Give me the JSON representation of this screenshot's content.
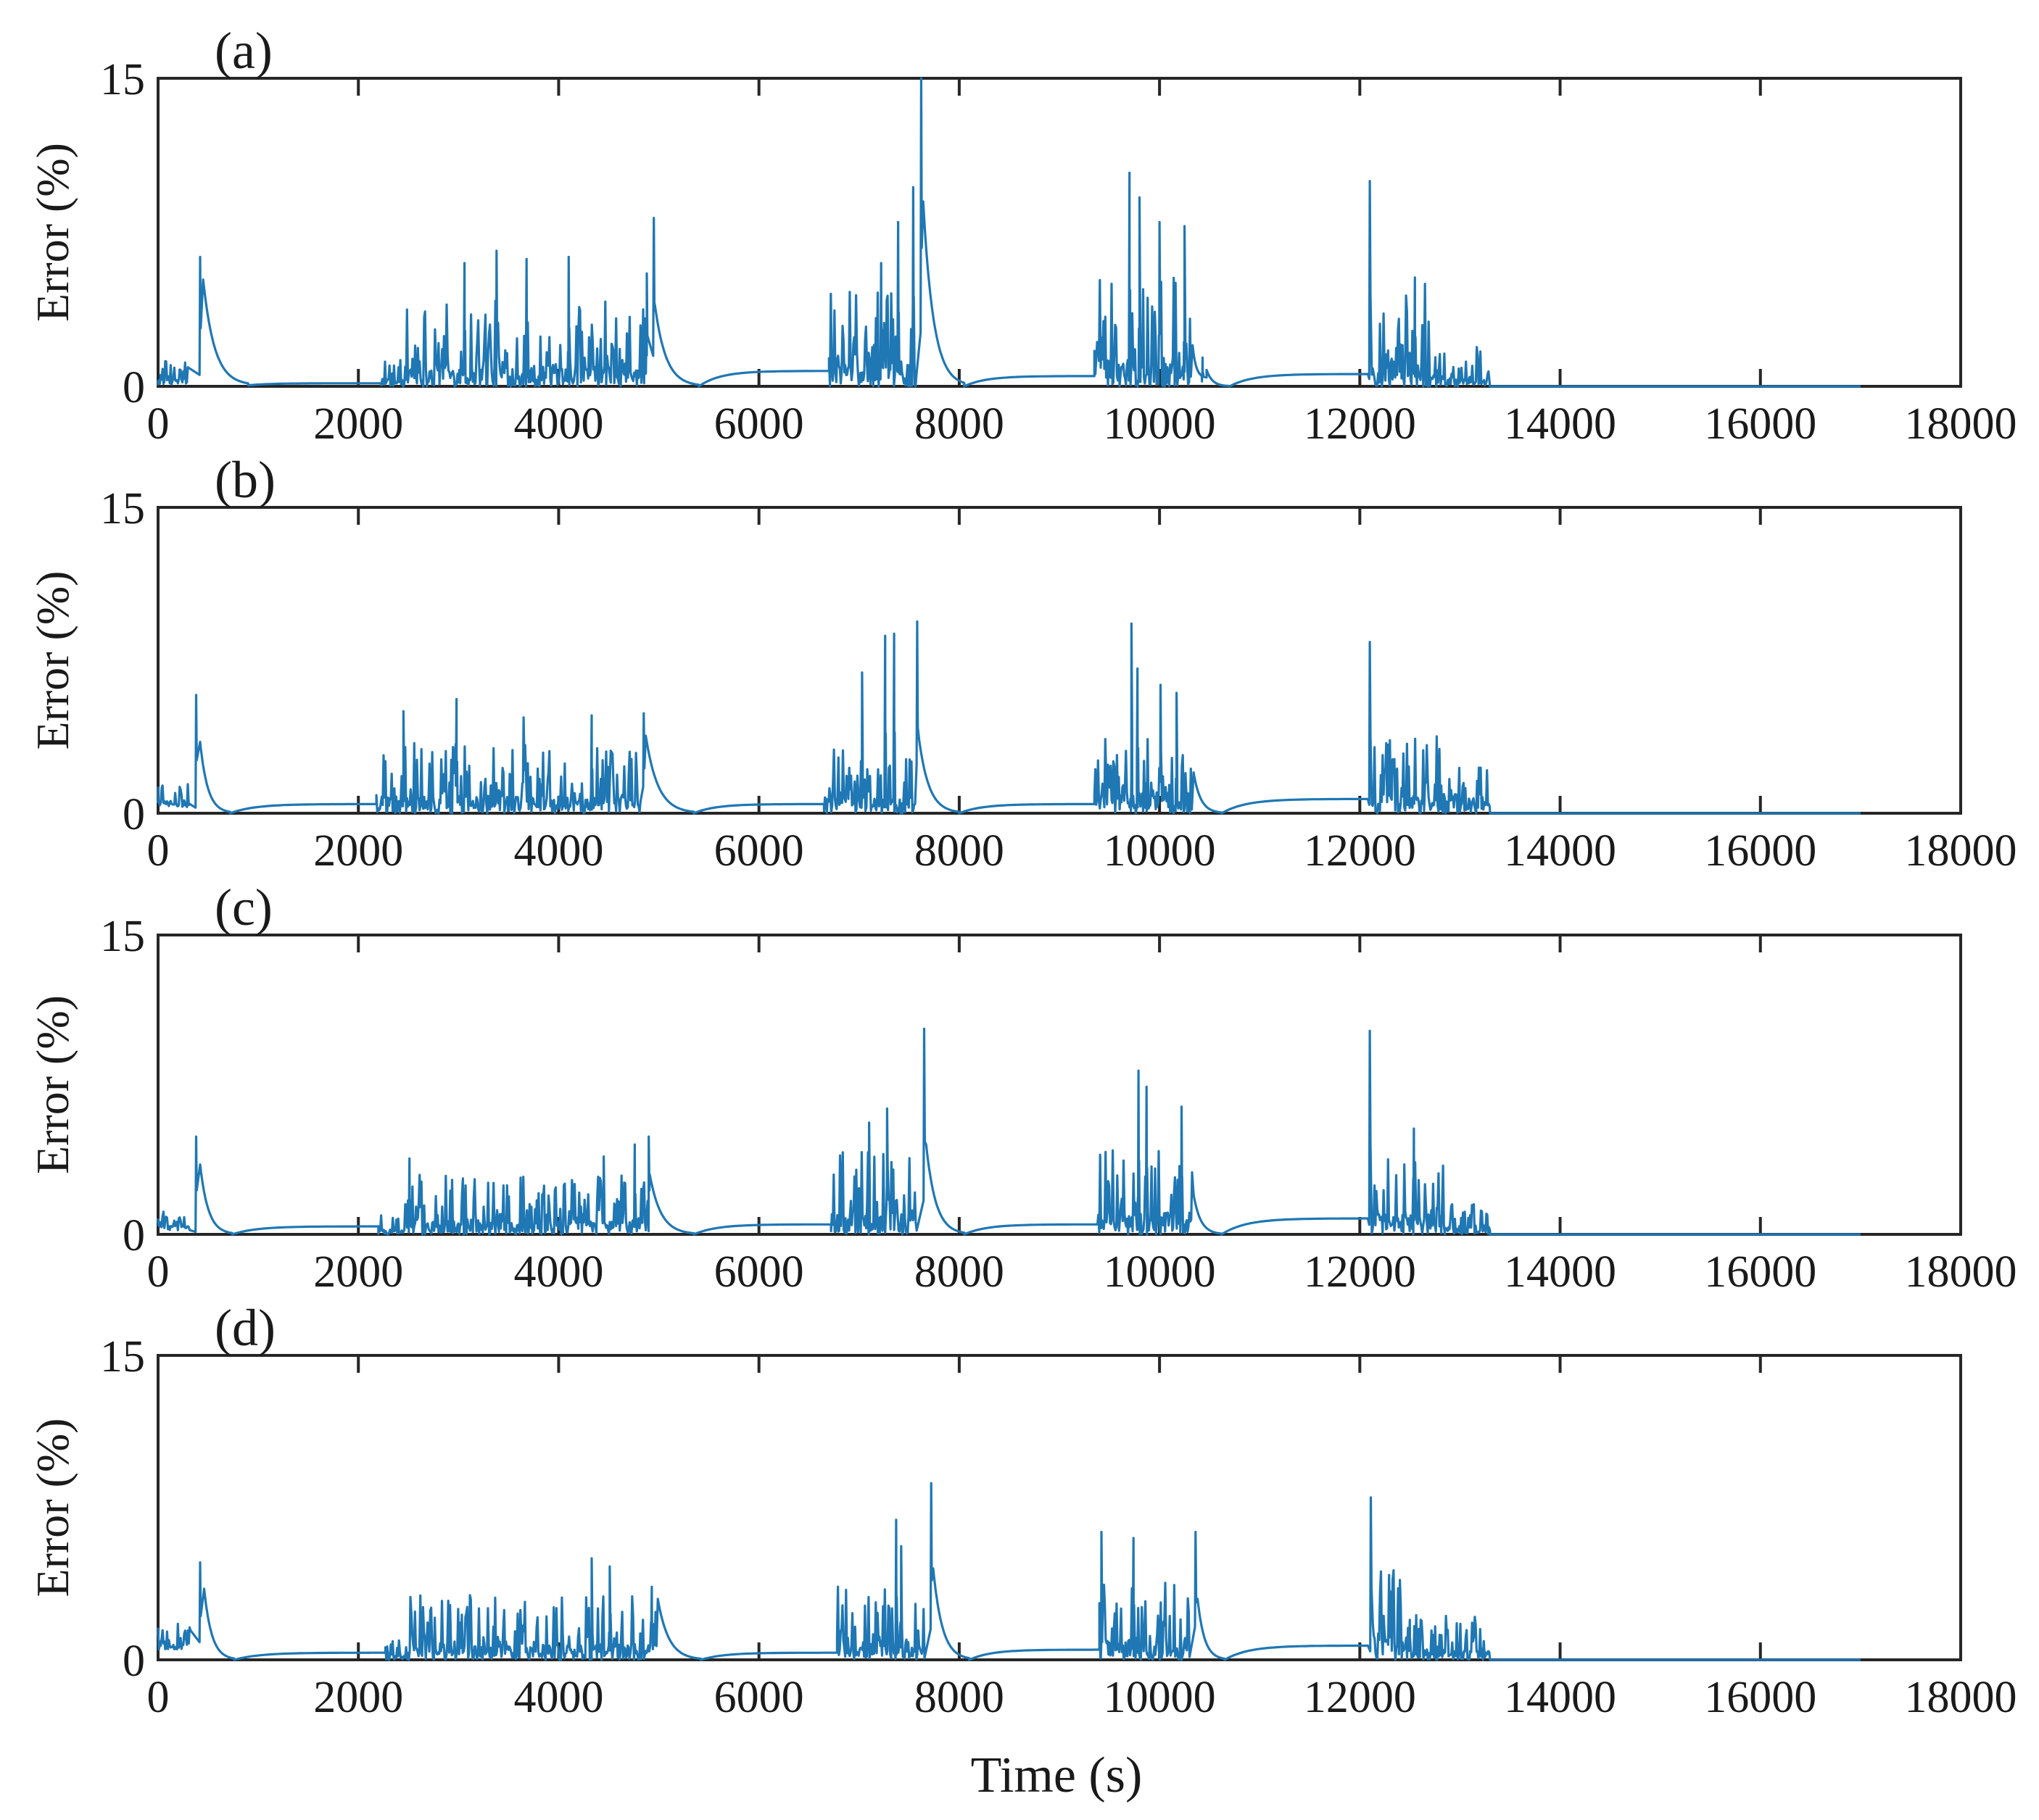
{
  "chart_data": {
    "type": "line",
    "title": "",
    "xlabel": "Time (s)",
    "series_color": "#1f77b4",
    "xlim": [
      0,
      18000
    ],
    "ylim": [
      0,
      15
    ],
    "xticks": [
      0,
      2000,
      4000,
      6000,
      8000,
      10000,
      12000,
      14000,
      16000,
      18000
    ],
    "yticks": [
      0,
      15
    ],
    "xtick_labels": [
      "0",
      "2000",
      "4000",
      "6000",
      "8000",
      "10000",
      "12000",
      "14000",
      "16000",
      "18000"
    ],
    "ytick_labels": [
      "0",
      "15"
    ],
    "panels": [
      {
        "label": "(a)",
        "ylabel": "Error (%)",
        "baseline_start": 0.3,
        "segments": [
          {
            "type": "noise",
            "start": 0,
            "end": 300,
            "amp": 1.2,
            "low": 0.1
          },
          {
            "type": "spike",
            "t": 420,
            "peak": 6.3
          },
          {
            "type": "decay",
            "start": 450,
            "end": 900,
            "from": 5.2,
            "to": 0.05
          },
          {
            "type": "flat",
            "start": 900,
            "end": 2230,
            "value": 0.15,
            "from": 0.05
          },
          {
            "type": "noise",
            "start": 2230,
            "end": 2450,
            "amp": 1.5,
            "low": 0.0
          },
          {
            "type": "noise",
            "start": 2450,
            "end": 4880,
            "amp": 4.2,
            "low": 0.0
          },
          {
            "type": "spike",
            "t": 3380,
            "peak": 6.6
          },
          {
            "type": "spike",
            "t": 3060,
            "peak": 6.0
          },
          {
            "type": "spike",
            "t": 3680,
            "peak": 6.2
          },
          {
            "type": "spike",
            "t": 4100,
            "peak": 6.3
          },
          {
            "type": "spike",
            "t": 4880,
            "peak": 5.5
          },
          {
            "type": "spike",
            "t": 4950,
            "peak": 8.2
          },
          {
            "type": "decay",
            "start": 4960,
            "end": 5400,
            "from": 4.0,
            "to": 0.0
          },
          {
            "type": "flat",
            "start": 5400,
            "end": 6700,
            "value": 0.75,
            "from": 0.0
          },
          {
            "type": "noise",
            "start": 6700,
            "end": 7580,
            "amp": 4.6,
            "low": 0.0
          },
          {
            "type": "spike",
            "t": 7220,
            "peak": 6.0
          },
          {
            "type": "spike",
            "t": 7390,
            "peak": 8.0
          },
          {
            "type": "spike",
            "t": 7540,
            "peak": 9.7
          },
          {
            "type": "spike",
            "t": 7620,
            "peak": 15.0
          },
          {
            "type": "decay",
            "start": 7640,
            "end": 8050,
            "from": 9.0,
            "to": 0.0
          },
          {
            "type": "flat",
            "start": 8050,
            "end": 9350,
            "value": 0.5,
            "from": 0.0
          },
          {
            "type": "noise",
            "start": 9350,
            "end": 10320,
            "amp": 5.4,
            "low": 0.0
          },
          {
            "type": "spike",
            "t": 9700,
            "peak": 10.4
          },
          {
            "type": "spike",
            "t": 9800,
            "peak": 9.2
          },
          {
            "type": "spike",
            "t": 10000,
            "peak": 8.0
          },
          {
            "type": "spike",
            "t": 10250,
            "peak": 7.8
          },
          {
            "type": "decay",
            "start": 10330,
            "end": 10470,
            "from": 2.0,
            "to": 0.4
          },
          {
            "type": "spike",
            "t": 10430,
            "peak": 1.4
          },
          {
            "type": "decay",
            "start": 10470,
            "end": 10700,
            "from": 0.8,
            "to": 0.0
          },
          {
            "type": "flat",
            "start": 10700,
            "end": 12080,
            "value": 0.6,
            "from": 0.0
          },
          {
            "type": "spike",
            "t": 12100,
            "peak": 10.0
          },
          {
            "type": "noise",
            "start": 12120,
            "end": 12700,
            "amp": 5.0,
            "low": 0.0
          },
          {
            "type": "spike",
            "t": 12550,
            "peak": 5.3
          },
          {
            "type": "noise",
            "start": 12700,
            "end": 13300,
            "amp": 2.0,
            "low": 0.0
          },
          {
            "type": "flat",
            "start": 13300,
            "end": 17000,
            "value": 0.0,
            "from": 0.0
          }
        ]
      },
      {
        "label": "(b)",
        "ylabel": "Error (%)",
        "baseline_start": 1.3,
        "segments": [
          {
            "type": "noise",
            "start": 0,
            "end": 320,
            "amp": 1.6,
            "low": 0.3
          },
          {
            "type": "spike",
            "t": 380,
            "peak": 5.8
          },
          {
            "type": "decay",
            "start": 420,
            "end": 720,
            "from": 3.5,
            "to": 0.0
          },
          {
            "type": "flat",
            "start": 720,
            "end": 2180,
            "value": 0.45,
            "from": 0.0
          },
          {
            "type": "noise",
            "start": 2180,
            "end": 4820,
            "amp": 3.5,
            "low": 0.0
          },
          {
            "type": "spike",
            "t": 2450,
            "peak": 5.0
          },
          {
            "type": "spike",
            "t": 2980,
            "peak": 5.6
          },
          {
            "type": "spike",
            "t": 3650,
            "peak": 4.7
          },
          {
            "type": "spike",
            "t": 4330,
            "peak": 4.8
          },
          {
            "type": "spike",
            "t": 4850,
            "peak": 4.9
          },
          {
            "type": "decay",
            "start": 4870,
            "end": 5350,
            "from": 3.8,
            "to": 0.0
          },
          {
            "type": "flat",
            "start": 5350,
            "end": 6650,
            "value": 0.45,
            "from": 0.0
          },
          {
            "type": "noise",
            "start": 6650,
            "end": 7560,
            "amp": 3.2,
            "low": 0.0
          },
          {
            "type": "spike",
            "t": 7030,
            "peak": 6.9
          },
          {
            "type": "spike",
            "t": 7260,
            "peak": 8.7
          },
          {
            "type": "spike",
            "t": 7350,
            "peak": 8.8
          },
          {
            "type": "spike",
            "t": 7580,
            "peak": 9.4
          },
          {
            "type": "decay",
            "start": 7600,
            "end": 8000,
            "from": 3.6,
            "to": 0.0
          },
          {
            "type": "flat",
            "start": 8000,
            "end": 9350,
            "value": 0.45,
            "from": 0.0
          },
          {
            "type": "noise",
            "start": 9350,
            "end": 10330,
            "amp": 4.0,
            "low": 0.0
          },
          {
            "type": "spike",
            "t": 9720,
            "peak": 9.3
          },
          {
            "type": "spike",
            "t": 9780,
            "peak": 7.1
          },
          {
            "type": "spike",
            "t": 10010,
            "peak": 6.3
          },
          {
            "type": "spike",
            "t": 10170,
            "peak": 5.9
          },
          {
            "type": "decay",
            "start": 10340,
            "end": 10620,
            "from": 2.0,
            "to": 0.0
          },
          {
            "type": "flat",
            "start": 10620,
            "end": 12080,
            "value": 0.7,
            "from": 0.0
          },
          {
            "type": "spike",
            "t": 12100,
            "peak": 8.4
          },
          {
            "type": "noise",
            "start": 12120,
            "end": 13000,
            "amp": 3.8,
            "low": 0.0
          },
          {
            "type": "noise",
            "start": 13000,
            "end": 13300,
            "amp": 2.5,
            "low": 0.0
          },
          {
            "type": "flat",
            "start": 13300,
            "end": 17000,
            "value": 0.0,
            "from": 0.0
          }
        ]
      },
      {
        "label": "(c)",
        "ylabel": "Error (%)",
        "baseline_start": 0.8,
        "segments": [
          {
            "type": "noise",
            "start": 0,
            "end": 320,
            "amp": 1.0,
            "low": 0.2
          },
          {
            "type": "spike",
            "t": 380,
            "peak": 4.9
          },
          {
            "type": "decay",
            "start": 420,
            "end": 740,
            "from": 3.5,
            "to": 0.0
          },
          {
            "type": "flat",
            "start": 740,
            "end": 2200,
            "value": 0.4,
            "from": 0.0
          },
          {
            "type": "noise",
            "start": 2200,
            "end": 2450,
            "amp": 1.0,
            "low": 0.0
          },
          {
            "type": "noise",
            "start": 2450,
            "end": 4900,
            "amp": 3.0,
            "low": 0.0
          },
          {
            "type": "spike",
            "t": 2510,
            "peak": 3.8
          },
          {
            "type": "spike",
            "t": 4450,
            "peak": 3.9
          },
          {
            "type": "spike",
            "t": 4760,
            "peak": 4.5
          },
          {
            "type": "spike",
            "t": 4900,
            "peak": 4.9
          },
          {
            "type": "decay",
            "start": 4910,
            "end": 5350,
            "from": 3.0,
            "to": 0.0
          },
          {
            "type": "flat",
            "start": 5350,
            "end": 6720,
            "value": 0.5,
            "from": 0.0
          },
          {
            "type": "noise",
            "start": 6720,
            "end": 7580,
            "amp": 4.2,
            "low": 0.0
          },
          {
            "type": "spike",
            "t": 7100,
            "peak": 5.6
          },
          {
            "type": "spike",
            "t": 7280,
            "peak": 6.3
          },
          {
            "type": "spike",
            "t": 7650,
            "peak": 10.3
          },
          {
            "type": "decay",
            "start": 7670,
            "end": 8050,
            "from": 4.5,
            "to": 0.0
          },
          {
            "type": "flat",
            "start": 8050,
            "end": 9380,
            "value": 0.5,
            "from": 0.0
          },
          {
            "type": "noise",
            "start": 9380,
            "end": 10330,
            "amp": 4.5,
            "low": 0.0
          },
          {
            "type": "spike",
            "t": 9790,
            "peak": 8.2
          },
          {
            "type": "spike",
            "t": 9870,
            "peak": 7.4
          },
          {
            "type": "spike",
            "t": 10220,
            "peak": 6.4
          },
          {
            "type": "decay",
            "start": 10340,
            "end": 10620,
            "from": 2.0,
            "to": 0.0
          },
          {
            "type": "flat",
            "start": 10620,
            "end": 12080,
            "value": 0.8,
            "from": 0.0
          },
          {
            "type": "spike",
            "t": 12100,
            "peak": 10.2
          },
          {
            "type": "noise",
            "start": 12120,
            "end": 12850,
            "amp": 4.0,
            "low": 0.0
          },
          {
            "type": "spike",
            "t": 12540,
            "peak": 5.3
          },
          {
            "type": "noise",
            "start": 12850,
            "end": 13300,
            "amp": 1.8,
            "low": 0.0
          },
          {
            "type": "flat",
            "start": 13300,
            "end": 17000,
            "value": 0.0,
            "from": 0.0
          }
        ]
      },
      {
        "label": "(d)",
        "ylabel": "Error (%)",
        "baseline_start": 1.2,
        "segments": [
          {
            "type": "noise",
            "start": 0,
            "end": 330,
            "amp": 1.3,
            "low": 0.5
          },
          {
            "type": "spike",
            "t": 420,
            "peak": 4.8
          },
          {
            "type": "decay",
            "start": 460,
            "end": 760,
            "from": 3.5,
            "to": 0.0
          },
          {
            "type": "flat",
            "start": 760,
            "end": 2270,
            "value": 0.35,
            "from": 0.0
          },
          {
            "type": "noise",
            "start": 2270,
            "end": 2520,
            "amp": 1.0,
            "low": 0.0
          },
          {
            "type": "noise",
            "start": 2520,
            "end": 4980,
            "amp": 3.2,
            "low": 0.0
          },
          {
            "type": "spike",
            "t": 4330,
            "peak": 5.0
          },
          {
            "type": "spike",
            "t": 4510,
            "peak": 4.6
          },
          {
            "type": "spike",
            "t": 4930,
            "peak": 3.6
          },
          {
            "type": "decay",
            "start": 4990,
            "end": 5420,
            "from": 3.0,
            "to": 0.0
          },
          {
            "type": "flat",
            "start": 5420,
            "end": 6780,
            "value": 0.35,
            "from": 0.0
          },
          {
            "type": "noise",
            "start": 6780,
            "end": 7660,
            "amp": 3.8,
            "low": 0.0
          },
          {
            "type": "spike",
            "t": 7370,
            "peak": 6.9
          },
          {
            "type": "spike",
            "t": 7420,
            "peak": 5.6
          },
          {
            "type": "spike",
            "t": 7720,
            "peak": 8.7
          },
          {
            "type": "decay",
            "start": 7740,
            "end": 8100,
            "from": 4.5,
            "to": 0.0
          },
          {
            "type": "flat",
            "start": 8100,
            "end": 9400,
            "value": 0.5,
            "from": 0.0
          },
          {
            "type": "noise",
            "start": 9400,
            "end": 10300,
            "amp": 4.0,
            "low": 0.0
          },
          {
            "type": "spike",
            "t": 9420,
            "peak": 6.3
          },
          {
            "type": "spike",
            "t": 9740,
            "peak": 6.0
          },
          {
            "type": "spike",
            "t": 10360,
            "peak": 6.3
          },
          {
            "type": "decay",
            "start": 10380,
            "end": 10650,
            "from": 3.0,
            "to": 0.0
          },
          {
            "type": "flat",
            "start": 10650,
            "end": 12080,
            "value": 0.7,
            "from": 0.0
          },
          {
            "type": "spike",
            "t": 12110,
            "peak": 8.0
          },
          {
            "type": "noise",
            "start": 12130,
            "end": 12500,
            "amp": 4.5,
            "low": 0.0
          },
          {
            "type": "noise",
            "start": 12500,
            "end": 13300,
            "amp": 2.2,
            "low": 0.0
          },
          {
            "type": "flat",
            "start": 13300,
            "end": 17000,
            "value": 0.0,
            "from": 0.0
          }
        ]
      }
    ]
  }
}
